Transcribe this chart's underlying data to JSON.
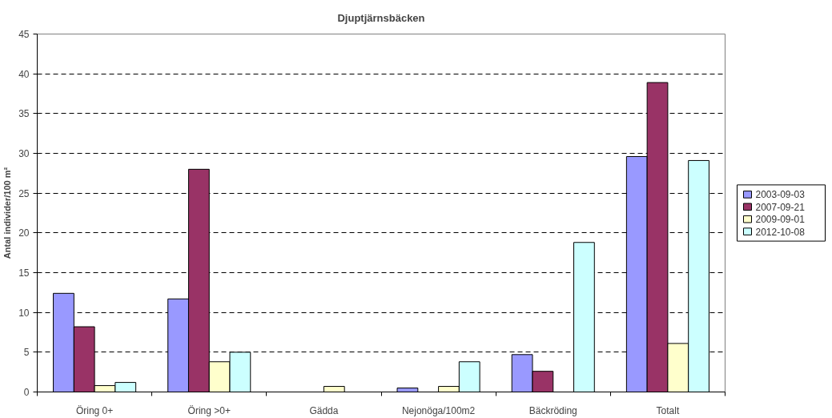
{
  "chart_data": {
    "type": "bar",
    "title": "Djuptjärnsbäcken",
    "ylabel": "Antal individer/100 m²",
    "categories": [
      "Öring 0+",
      "Öring >0+",
      "Gädda",
      "Nejonöga/100m2",
      "Bäckröding",
      "Totalt"
    ],
    "series": [
      {
        "name": "2003-09-03",
        "color": "#9999ff",
        "values": [
          12.4,
          11.7,
          null,
          0.5,
          4.7,
          29.6
        ]
      },
      {
        "name": "2007-09-21",
        "color": "#993366",
        "values": [
          8.2,
          28.0,
          null,
          null,
          2.6,
          38.9
        ]
      },
      {
        "name": "2009-09-01",
        "color": "#ffffcc",
        "values": [
          0.8,
          3.8,
          0.7,
          0.7,
          null,
          6.1
        ]
      },
      {
        "name": "2012-10-08",
        "color": "#ccffff",
        "values": [
          1.2,
          5.0,
          null,
          3.8,
          18.8,
          29.1
        ]
      }
    ],
    "ylim": [
      0,
      45
    ],
    "yticks": [
      0,
      5,
      10,
      15,
      20,
      25,
      30,
      35,
      40,
      45
    ],
    "grid": "y",
    "legend": "right"
  }
}
